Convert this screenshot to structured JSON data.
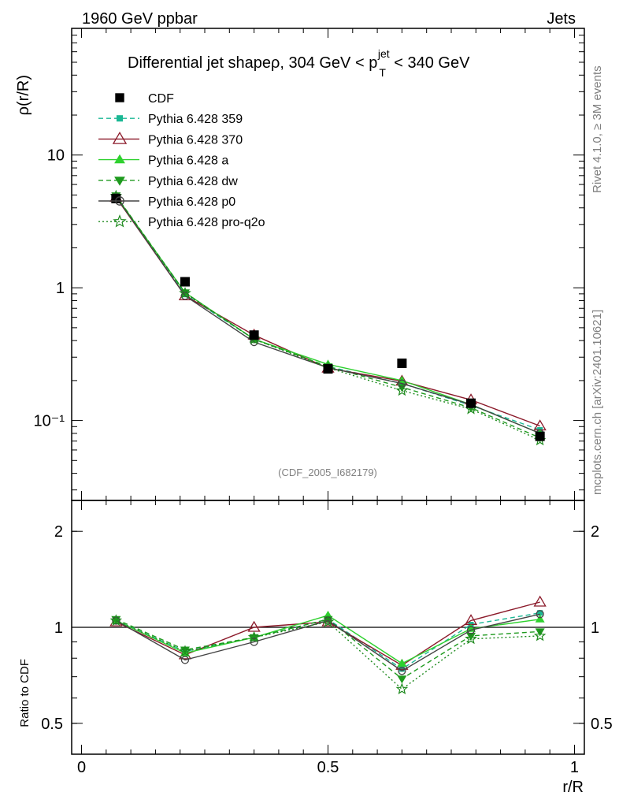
{
  "header": {
    "left": "1960 GeV ppbar",
    "right": "Jets"
  },
  "side_labels": {
    "rivet": "Rivet 4.1.0, ≥ 3M events",
    "mcplots": "mcplots.cern.ch [arXiv:2401.10621]"
  },
  "chart_data": [
    {
      "type": "line",
      "panel": "main",
      "title": "Differential jet shapeρ, 304 GeV < p_T^jet < 340 GeV",
      "title_parts": {
        "prefix": "Differential jet shapeρ, 304 GeV < p",
        "sup": "jet",
        "sub": "T",
        "suffix": " < 340 GeV"
      },
      "xlabel": "r/R",
      "ylabel": "ρ(r/R)",
      "yscale": "log",
      "xlim": [
        -0.02,
        1.02
      ],
      "ylim": [
        0.025,
        90
      ],
      "xticks": [
        0,
        0.5,
        1
      ],
      "xtick_labels": [
        "0",
        "0.5",
        "1"
      ],
      "yticks": [
        0.1,
        1,
        10
      ],
      "ytick_labels": [
        "10⁻¹",
        "1",
        "10"
      ],
      "watermark": "(CDF_2005_I682179)",
      "x": [
        0.07,
        0.21,
        0.35,
        0.5,
        0.65,
        0.79,
        0.93
      ],
      "series": [
        {
          "name": "CDF",
          "color": "#000000",
          "marker": "square",
          "dash": "none",
          "values": [
            4.7,
            1.11,
            0.44,
            0.245,
            0.27,
            0.135,
            0.076
          ]
        },
        {
          "name": "Pythia 6.428 359",
          "color": "#1ab894",
          "marker": "smallsquare",
          "dash": "dashed",
          "values": [
            4.85,
            0.89,
            0.41,
            0.255,
            0.19,
            0.13,
            0.085
          ]
        },
        {
          "name": "Pythia 6.428 370",
          "color": "#8b1a2a",
          "marker": "triangle-open",
          "dash": "solid",
          "values": [
            4.8,
            0.87,
            0.44,
            0.248,
            0.198,
            0.143,
            0.091
          ]
        },
        {
          "name": "Pythia 6.428 a",
          "color": "#2ed12e",
          "marker": "triangle",
          "dash": "solid",
          "values": [
            4.9,
            0.92,
            0.41,
            0.265,
            0.2,
            0.132,
            0.08
          ]
        },
        {
          "name": "Pythia 6.428 dw",
          "color": "#1e9a1e",
          "marker": "triangle-down",
          "dash": "dashed",
          "values": [
            4.95,
            0.92,
            0.41,
            0.255,
            0.178,
            0.125,
            0.074
          ]
        },
        {
          "name": "Pythia 6.428 p0",
          "color": "#444444",
          "marker": "circle-open",
          "dash": "solid",
          "values": [
            4.85,
            0.87,
            0.39,
            0.25,
            0.19,
            0.132,
            0.08
          ]
        },
        {
          "name": "Pythia 6.428 pro-q2o",
          "color": "#1e8a1e",
          "marker": "star",
          "dash": "dotted",
          "values": [
            4.9,
            0.91,
            0.41,
            0.25,
            0.168,
            0.122,
            0.071
          ]
        }
      ]
    },
    {
      "type": "line",
      "panel": "ratio",
      "xlabel": "r/R",
      "ylabel": "Ratio to CDF",
      "yscale": "log",
      "xlim": [
        -0.02,
        1.02
      ],
      "ylim": [
        0.4,
        2.5
      ],
      "yticks": [
        0.5,
        1,
        2
      ],
      "ytick_labels": [
        "0.5",
        "1",
        "2"
      ],
      "x": [
        0.07,
        0.21,
        0.35,
        0.5,
        0.65,
        0.79,
        0.93
      ],
      "series": [
        {
          "name": "Pythia 6.428 359",
          "color": "#1ab894",
          "marker": "smallsquare",
          "dash": "dashed",
          "values": [
            1.05,
            0.84,
            0.93,
            1.06,
            0.74,
            1.02,
            1.11
          ]
        },
        {
          "name": "Pythia 6.428 370",
          "color": "#8b1a2a",
          "marker": "triangle-open",
          "dash": "solid",
          "values": [
            1.04,
            0.82,
            1.0,
            1.04,
            0.76,
            1.05,
            1.2
          ]
        },
        {
          "name": "Pythia 6.428 a",
          "color": "#2ed12e",
          "marker": "triangle",
          "dash": "solid",
          "values": [
            1.05,
            0.83,
            0.93,
            1.09,
            0.77,
            0.99,
            1.06
          ]
        },
        {
          "name": "Pythia 6.428 dw",
          "color": "#1e9a1e",
          "marker": "triangle-down",
          "dash": "dashed",
          "values": [
            1.06,
            0.85,
            0.93,
            1.06,
            0.69,
            0.94,
            0.97
          ]
        },
        {
          "name": "Pythia 6.428 p0",
          "color": "#444444",
          "marker": "circle-open",
          "dash": "solid",
          "values": [
            1.05,
            0.79,
            0.9,
            1.05,
            0.73,
            0.98,
            1.1
          ]
        },
        {
          "name": "Pythia 6.428 pro-q2o",
          "color": "#1e8a1e",
          "marker": "star",
          "dash": "dotted",
          "values": [
            1.05,
            0.84,
            0.93,
            1.04,
            0.64,
            0.92,
            0.94
          ]
        }
      ]
    }
  ]
}
